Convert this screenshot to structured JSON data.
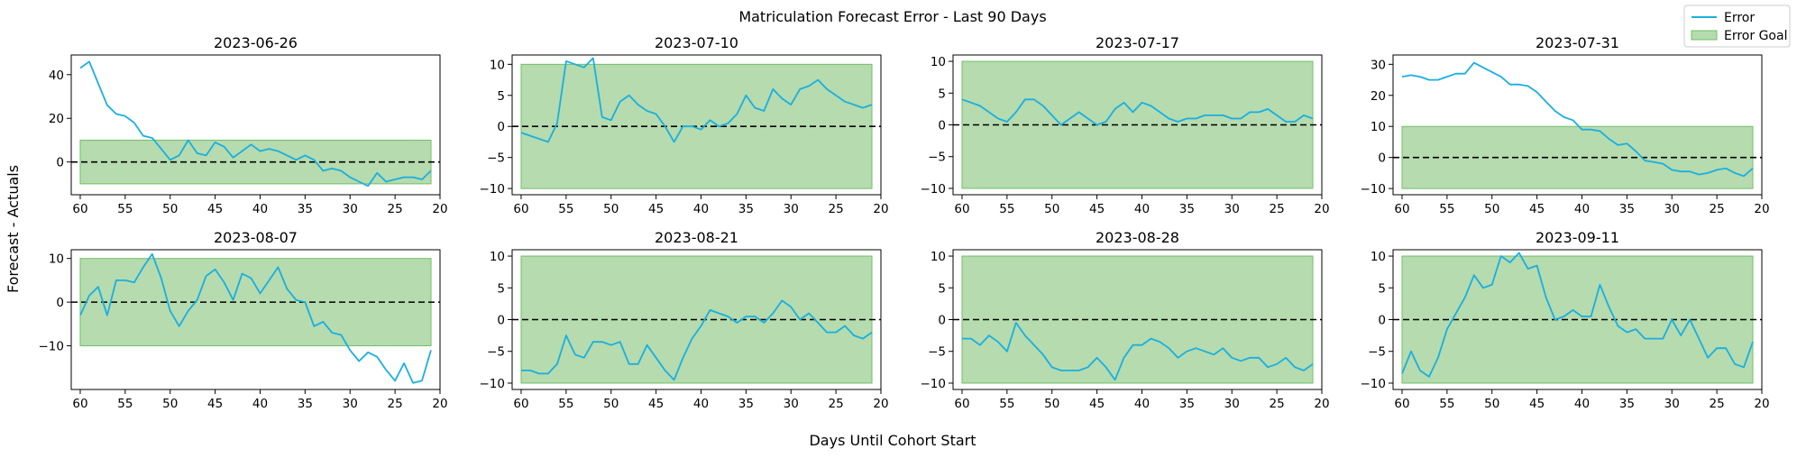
{
  "figure": {
    "title": "Matriculation Forecast Error - Last 90 Days",
    "xlabel": "Days Until Cohort Start",
    "ylabel": "Forecast - Actuals",
    "legend": {
      "position": "top-right",
      "error_label": "Error",
      "goal_label": "Error Goal"
    },
    "colors": {
      "error_line": "#1aafe0",
      "goal_fill": "#a8d5a0",
      "goal_edge": "#6fbf67",
      "zero_line": "#000000"
    }
  },
  "chart_data": [
    {
      "type": "line",
      "title": "2023-06-26",
      "xlim": [
        61,
        20
      ],
      "ylim": [
        -15,
        49
      ],
      "xticks": [
        60,
        55,
        50,
        45,
        40,
        35,
        30,
        25,
        20
      ],
      "yticks": [
        40,
        20,
        0
      ],
      "goal_band": [
        -10,
        10
      ],
      "reference_line": 0,
      "series": [
        {
          "x": [
            60,
            59,
            58,
            57,
            56,
            55,
            54,
            53,
            52,
            51,
            50,
            49,
            48,
            47,
            46,
            45,
            44,
            43,
            42,
            41,
            40,
            39,
            38,
            37,
            36,
            35,
            34,
            33,
            32,
            31,
            30,
            29,
            28,
            27,
            26,
            25,
            24,
            23,
            22,
            21
          ],
          "y": [
            43,
            46,
            36,
            26,
            22,
            21,
            18,
            12,
            11,
            6,
            1,
            3,
            10,
            4,
            3,
            9,
            7,
            2,
            5,
            8,
            5,
            6,
            5,
            3,
            1,
            3,
            1,
            -4,
            -3,
            -4,
            -7,
            -9,
            -11,
            -5,
            -9,
            -8,
            -7,
            -7,
            -8,
            -4
          ]
        }
      ]
    },
    {
      "type": "line",
      "title": "2023-07-10",
      "xlim": [
        61,
        20
      ],
      "ylim": [
        -11,
        11.5
      ],
      "xticks": [
        60,
        55,
        50,
        45,
        40,
        35,
        30,
        25,
        20
      ],
      "yticks": [
        10,
        5,
        0,
        -5,
        -10
      ],
      "goal_band": [
        -10,
        10
      ],
      "reference_line": 0,
      "series": [
        {
          "x": [
            60,
            59,
            58,
            57,
            56,
            55,
            54,
            53,
            52,
            51,
            50,
            49,
            48,
            47,
            46,
            45,
            44,
            43,
            42,
            41,
            40,
            39,
            38,
            37,
            36,
            35,
            34,
            33,
            32,
            31,
            30,
            29,
            28,
            27,
            26,
            25,
            24,
            23,
            22,
            21
          ],
          "y": [
            -1,
            -1.5,
            -2,
            -2.5,
            0.5,
            10.5,
            10,
            9.5,
            11,
            1.5,
            1,
            4,
            5,
            3.5,
            2.5,
            2,
            0,
            -2.5,
            0,
            0,
            -0.5,
            1,
            0,
            0.5,
            2,
            5,
            3,
            2.5,
            6,
            4.5,
            3.5,
            6,
            6.5,
            7.5,
            6,
            5,
            4,
            3.5,
            3,
            3.5
          ]
        }
      ]
    },
    {
      "type": "line",
      "title": "2023-07-17",
      "xlim": [
        61,
        20
      ],
      "ylim": [
        -11,
        11
      ],
      "xticks": [
        60,
        55,
        50,
        45,
        40,
        35,
        30,
        25,
        20
      ],
      "yticks": [
        10,
        5,
        0,
        -5,
        -10
      ],
      "goal_band": [
        -10,
        10
      ],
      "reference_line": 0,
      "series": [
        {
          "x": [
            60,
            59,
            58,
            57,
            56,
            55,
            54,
            53,
            52,
            51,
            50,
            49,
            48,
            47,
            46,
            45,
            44,
            43,
            42,
            41,
            40,
            39,
            38,
            37,
            36,
            35,
            34,
            33,
            32,
            31,
            30,
            29,
            28,
            27,
            26,
            25,
            24,
            23,
            22,
            21
          ],
          "y": [
            4,
            3.5,
            3,
            2,
            1,
            0.5,
            2,
            4,
            4,
            3,
            1.5,
            0,
            1,
            2,
            1,
            0,
            0.5,
            2.5,
            3.5,
            2,
            3.5,
            3,
            2,
            1,
            0.5,
            1,
            1,
            1.5,
            1.5,
            1.5,
            1,
            1,
            2,
            2,
            2.5,
            1.5,
            0.5,
            0.5,
            1.5,
            1
          ]
        }
      ]
    },
    {
      "type": "line",
      "title": "2023-07-31",
      "xlim": [
        61,
        20
      ],
      "ylim": [
        -12,
        33
      ],
      "xticks": [
        60,
        55,
        50,
        45,
        40,
        35,
        30,
        25,
        20
      ],
      "yticks": [
        30,
        20,
        10,
        0,
        -10
      ],
      "goal_band": [
        -10,
        10
      ],
      "reference_line": 0,
      "series": [
        {
          "x": [
            60,
            59,
            58,
            57,
            56,
            55,
            54,
            53,
            52,
            51,
            50,
            49,
            48,
            47,
            46,
            45,
            44,
            43,
            42,
            41,
            40,
            39,
            38,
            37,
            36,
            35,
            34,
            33,
            32,
            31,
            30,
            29,
            28,
            27,
            26,
            25,
            24,
            23,
            22,
            21
          ],
          "y": [
            26,
            26.5,
            26,
            25,
            25,
            26,
            27,
            27,
            30.5,
            29,
            27.5,
            26,
            23.5,
            23.5,
            23,
            21,
            18,
            15,
            13,
            12,
            9,
            9,
            8.5,
            6,
            4,
            4.5,
            2,
            -1,
            -1.5,
            -2,
            -4,
            -4.5,
            -4.5,
            -5.5,
            -5,
            -4,
            -3.5,
            -5,
            -6,
            -3.5
          ]
        }
      ]
    },
    {
      "type": "line",
      "title": "2023-08-07",
      "xlim": [
        61,
        20
      ],
      "ylim": [
        -20,
        12
      ],
      "xticks": [
        60,
        55,
        50,
        45,
        40,
        35,
        30,
        25,
        20
      ],
      "yticks": [
        10,
        0,
        -10
      ],
      "goal_band": [
        -10,
        10
      ],
      "reference_line": 0,
      "series": [
        {
          "x": [
            60,
            59,
            58,
            57,
            56,
            55,
            54,
            53,
            52,
            51,
            50,
            49,
            48,
            47,
            46,
            45,
            44,
            43,
            42,
            41,
            40,
            39,
            38,
            37,
            36,
            35,
            34,
            33,
            32,
            31,
            30,
            29,
            28,
            27,
            26,
            25,
            24,
            23,
            22,
            21
          ],
          "y": [
            -3,
            1.5,
            3.5,
            -3,
            5,
            5,
            4.5,
            8,
            11,
            5.5,
            -2,
            -5.5,
            -2,
            0.5,
            6,
            7.5,
            4.5,
            0.5,
            6.5,
            5.5,
            2,
            5,
            8,
            3,
            0.5,
            0,
            -5.5,
            -4.5,
            -7,
            -7.5,
            -11,
            -13.5,
            -11.5,
            -12.5,
            -15.5,
            -18,
            -14,
            -18.5,
            -18,
            -11
          ]
        }
      ]
    },
    {
      "type": "line",
      "title": "2023-08-21",
      "xlim": [
        61,
        20
      ],
      "ylim": [
        -11,
        11
      ],
      "xticks": [
        60,
        55,
        50,
        45,
        40,
        35,
        30,
        25,
        20
      ],
      "yticks": [
        10,
        5,
        0,
        -5,
        -10
      ],
      "goal_band": [
        -10,
        10
      ],
      "reference_line": 0,
      "series": [
        {
          "x": [
            60,
            59,
            58,
            57,
            56,
            55,
            54,
            53,
            52,
            51,
            50,
            49,
            48,
            47,
            46,
            45,
            44,
            43,
            42,
            41,
            40,
            39,
            38,
            37,
            36,
            35,
            34,
            33,
            32,
            31,
            30,
            29,
            28,
            27,
            26,
            25,
            24,
            23,
            22,
            21
          ],
          "y": [
            -8,
            -8,
            -8.5,
            -8.5,
            -7,
            -2.5,
            -5.5,
            -6,
            -3.5,
            -3.5,
            -4,
            -3.5,
            -7,
            -7,
            -4,
            -6,
            -8,
            -9.5,
            -6,
            -3,
            -1,
            1.5,
            1,
            0.5,
            -0.5,
            0.5,
            0.5,
            -0.5,
            1,
            3,
            2,
            0,
            1,
            -0.5,
            -2,
            -2,
            -1,
            -2.5,
            -3,
            -2
          ]
        }
      ]
    },
    {
      "type": "line",
      "title": "2023-08-28",
      "xlim": [
        61,
        20
      ],
      "ylim": [
        -11,
        11
      ],
      "xticks": [
        60,
        55,
        50,
        45,
        40,
        35,
        30,
        25,
        20
      ],
      "yticks": [
        10,
        5,
        0,
        -5,
        -10
      ],
      "goal_band": [
        -10,
        10
      ],
      "reference_line": 0,
      "series": [
        {
          "x": [
            60,
            59,
            58,
            57,
            56,
            55,
            54,
            53,
            52,
            51,
            50,
            49,
            48,
            47,
            46,
            45,
            44,
            43,
            42,
            41,
            40,
            39,
            38,
            37,
            36,
            35,
            34,
            33,
            32,
            31,
            30,
            29,
            28,
            27,
            26,
            25,
            24,
            23,
            22,
            21
          ],
          "y": [
            -3,
            -3,
            -4,
            -2.5,
            -3.5,
            -5,
            -0.5,
            -2.5,
            -4,
            -5.5,
            -7.5,
            -8,
            -8,
            -8,
            -7.5,
            -6,
            -7.5,
            -9.5,
            -6,
            -4,
            -4,
            -3,
            -3.5,
            -4.5,
            -6,
            -5,
            -4.5,
            -5,
            -5.5,
            -4.5,
            -6,
            -6.5,
            -6,
            -6,
            -7.5,
            -7,
            -6,
            -7.5,
            -8,
            -7
          ]
        }
      ]
    },
    {
      "type": "line",
      "title": "2023-09-11",
      "xlim": [
        61,
        20
      ],
      "ylim": [
        -11,
        11
      ],
      "xticks": [
        60,
        55,
        50,
        45,
        40,
        35,
        30,
        25,
        20
      ],
      "yticks": [
        10,
        5,
        0,
        -5,
        -10
      ],
      "goal_band": [
        -10,
        10
      ],
      "reference_line": 0,
      "series": [
        {
          "x": [
            60,
            59,
            58,
            57,
            56,
            55,
            54,
            53,
            52,
            51,
            50,
            49,
            48,
            47,
            46,
            45,
            44,
            43,
            42,
            41,
            40,
            39,
            38,
            37,
            36,
            35,
            34,
            33,
            32,
            31,
            30,
            29,
            28,
            27,
            26,
            25,
            24,
            23,
            22,
            21
          ],
          "y": [
            -8.5,
            -5,
            -8,
            -9,
            -6,
            -1.5,
            1,
            3.5,
            7,
            5,
            5.5,
            10,
            9,
            10.5,
            8,
            8.5,
            3.5,
            0,
            0.5,
            1.5,
            0.5,
            0.5,
            5.5,
            2,
            -1,
            -2,
            -1.5,
            -3,
            -3,
            -3,
            0,
            -2.5,
            0,
            -3,
            -6,
            -4.5,
            -4.5,
            -7,
            -7.5,
            -3.5
          ]
        }
      ]
    }
  ]
}
